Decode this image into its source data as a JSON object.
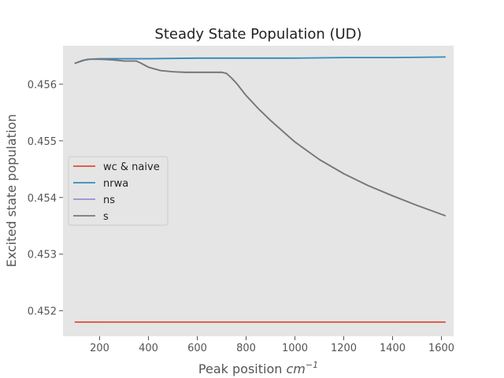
{
  "chart_data": {
    "type": "line",
    "title": "Steady State Population (UD)",
    "xlabel": "Peak position",
    "xlabel_unit": "cm",
    "xlabel_unit_exp": "−1",
    "ylabel": "Excited state population",
    "xlim": [
      50,
      1650
    ],
    "ylim": [
      0.45155,
      0.45668
    ],
    "xticks": [
      200,
      400,
      600,
      800,
      1000,
      1200,
      1400,
      1600
    ],
    "yticks": [
      0.452,
      0.453,
      0.454,
      0.455,
      0.456
    ],
    "ytick_labels": [
      "0.452",
      "0.453",
      "0.454",
      "0.455",
      "0.456"
    ],
    "background": "#e5e5e5",
    "grid": false,
    "legend": {
      "position": "center-left"
    },
    "series": [
      {
        "name": "wc & naive",
        "color": "#e24a33",
        "x": [
          100,
          1615
        ],
        "y": [
          0.4518,
          0.4518
        ]
      },
      {
        "name": "nrwa",
        "color": "#348abd",
        "x": [
          100,
          150,
          200,
          400,
          600,
          800,
          1000,
          1200,
          1400,
          1615
        ],
        "y": [
          0.45637,
          0.45644,
          0.45645,
          0.45645,
          0.45646,
          0.45646,
          0.45646,
          0.45647,
          0.45647,
          0.45648
        ]
      },
      {
        "name": "ns",
        "color": "#988ed5",
        "x": [
          100,
          130,
          160,
          200,
          250,
          300,
          350,
          370,
          400,
          450,
          500,
          550,
          600,
          650,
          700,
          720,
          740,
          760,
          800,
          850,
          900,
          1000,
          1100,
          1200,
          1300,
          1400,
          1500,
          1615
        ],
        "y": [
          0.45637,
          0.45642,
          0.45644,
          0.45644,
          0.45643,
          0.45641,
          0.45641,
          0.45637,
          0.4563,
          0.45624,
          0.45622,
          0.45621,
          0.45621,
          0.45621,
          0.45621,
          0.45619,
          0.45611,
          0.45602,
          0.4558,
          0.45557,
          0.45536,
          0.45498,
          0.45467,
          0.45442,
          0.45421,
          0.45403,
          0.45386,
          0.45368
        ]
      },
      {
        "name": "s",
        "color": "#777777",
        "x": [
          100,
          130,
          160,
          200,
          250,
          300,
          350,
          370,
          400,
          450,
          500,
          550,
          600,
          650,
          700,
          720,
          740,
          760,
          800,
          850,
          900,
          1000,
          1100,
          1200,
          1300,
          1400,
          1500,
          1615
        ],
        "y": [
          0.45637,
          0.45642,
          0.45644,
          0.45644,
          0.45643,
          0.45641,
          0.45641,
          0.45637,
          0.4563,
          0.45624,
          0.45622,
          0.45621,
          0.45621,
          0.45621,
          0.45621,
          0.45619,
          0.45611,
          0.45602,
          0.4558,
          0.45557,
          0.45536,
          0.45498,
          0.45467,
          0.45442,
          0.45421,
          0.45403,
          0.45386,
          0.45368
        ]
      }
    ]
  }
}
